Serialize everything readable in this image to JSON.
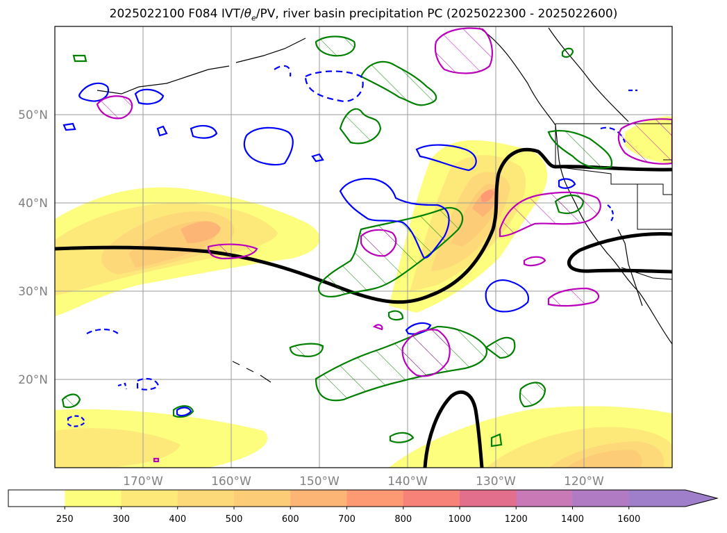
{
  "title": {
    "prefix": "2025022100 F084 IVT/",
    "theta": "θ",
    "theta_sub": "e",
    "suffix": "/PV, river basin precipitation PC (2025022300 - 2025022600)"
  },
  "map": {
    "lon_range": [
      -180,
      -110
    ],
    "lat_range": [
      10,
      60
    ],
    "lon_ticks": [
      {
        "lon": -170,
        "label": "170°W"
      },
      {
        "lon": -160,
        "label": "160°W"
      },
      {
        "lon": -150,
        "label": "150°W"
      },
      {
        "lon": -140,
        "label": "140°W"
      },
      {
        "lon": -130,
        "label": "130°W"
      },
      {
        "lon": -120,
        "label": "120°W"
      }
    ],
    "lat_ticks": [
      {
        "lat": 20,
        "label": "20°N"
      },
      {
        "lat": 30,
        "label": "30°N"
      },
      {
        "lat": 40,
        "label": "40°N"
      },
      {
        "lat": 50,
        "label": "50°N"
      }
    ],
    "gridlines": true
  },
  "colorbar": {
    "ticks": [
      "250",
      "300",
      "400",
      "500",
      "600",
      "700",
      "800",
      "1000",
      "1200",
      "1400",
      "1600"
    ],
    "colors": [
      "#ffffff",
      "#fdfd7e",
      "#fde97a",
      "#fdd97a",
      "#fdcc77",
      "#fdb575",
      "#fd9a73",
      "#f78278",
      "#e26f8c",
      "#c879b6",
      "#b17bc4",
      "#9f7fc9"
    ],
    "extend": "max"
  },
  "legend_colors": {
    "ivt_fill": "#fdd97a",
    "pv_contour": "#000000",
    "theta_e_positive": "#008000",
    "theta_e_negative": "#0000ff",
    "precip_pc": "#bb00bb"
  }
}
